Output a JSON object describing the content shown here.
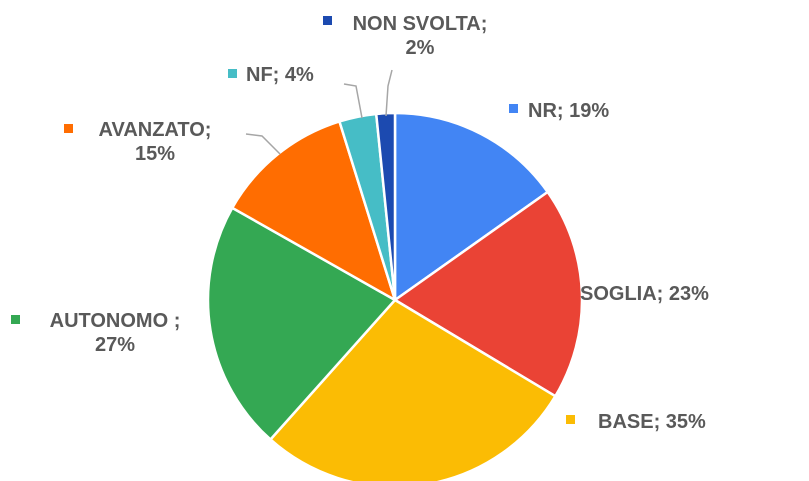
{
  "chart_data": {
    "type": "pie",
    "categories": [
      "NR",
      "SOGLIA",
      "BASE",
      "AUTONOMO",
      "AVANZATO",
      "NF",
      "NON SVOLTA"
    ],
    "values": [
      19,
      23,
      35,
      27,
      15,
      4,
      2
    ],
    "value_labels": [
      "NR; 19%",
      "SOGLIA; 23%",
      "BASE; 35%",
      "AUTONOMO ; 27%",
      "AVANZATO; 15%",
      "NF; 4%",
      "NON SVOLTA; 2%"
    ],
    "colors": [
      "#4285f4",
      "#ea4335",
      "#fbbc04",
      "#34a853",
      "#ff6d01",
      "#46bdc6",
      "#1c4ab0"
    ]
  }
}
